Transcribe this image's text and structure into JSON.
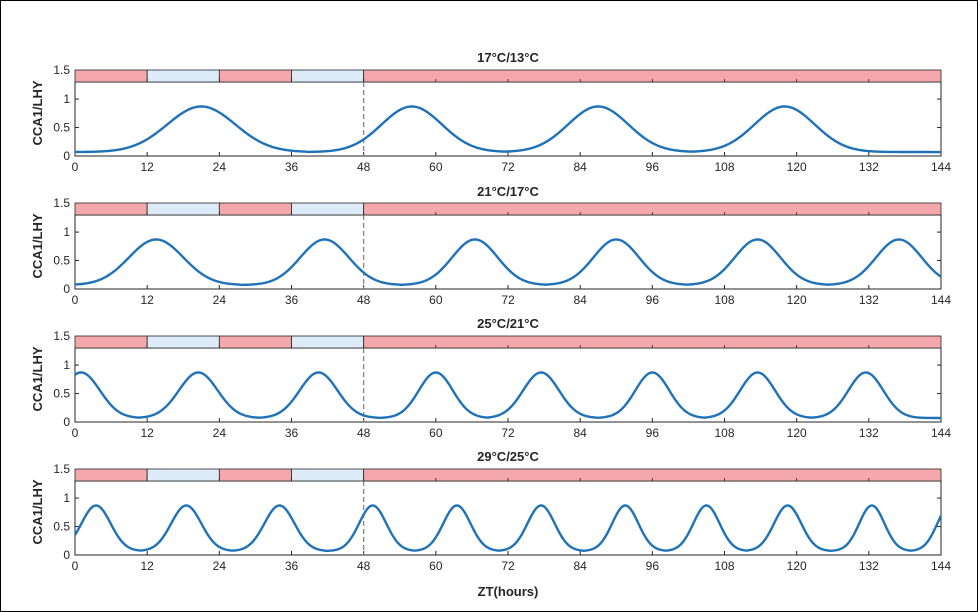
{
  "chart_data": [
    {
      "type": "line",
      "title": "17°C/13°C",
      "ylabel": "CCA1/LHY",
      "xlabel": "",
      "xlim": [
        0,
        144
      ],
      "ylim": [
        0,
        1.3
      ],
      "xticks": [
        0,
        12,
        24,
        36,
        48,
        60,
        72,
        84,
        96,
        108,
        120,
        132,
        144
      ],
      "yticks": [
        0,
        0.5,
        1
      ],
      "ytick_labels": [
        "0",
        "0.5",
        "1",
        "1.5"
      ],
      "bar_top_value": 1.5,
      "light_dark_bar": [
        {
          "start": 0,
          "end": 12,
          "state": "light"
        },
        {
          "start": 12,
          "end": 24,
          "state": "dark"
        },
        {
          "start": 24,
          "end": 36,
          "state": "light"
        },
        {
          "start": 36,
          "end": 48,
          "state": "dark"
        },
        {
          "start": 48,
          "end": 144,
          "state": "light"
        }
      ],
      "divider_x": 48,
      "series": [
        {
          "color": "#1f72b8",
          "min": 0.07,
          "max": 0.87,
          "peaks": [
            21,
            56,
            87,
            118
          ]
        }
      ]
    },
    {
      "type": "line",
      "title": "21°C/17°C",
      "ylabel": "CCA1/LHY",
      "xlabel": "",
      "xlim": [
        0,
        144
      ],
      "ylim": [
        0,
        1.3
      ],
      "xticks": [
        0,
        12,
        24,
        36,
        48,
        60,
        72,
        84,
        96,
        108,
        120,
        132,
        144
      ],
      "yticks": [
        0,
        0.5,
        1
      ],
      "ytick_labels": [
        "0",
        "0.5",
        "1",
        "1.5"
      ],
      "bar_top_value": 1.5,
      "light_dark_bar": [
        {
          "start": 0,
          "end": 12,
          "state": "light"
        },
        {
          "start": 12,
          "end": 24,
          "state": "dark"
        },
        {
          "start": 24,
          "end": 36,
          "state": "light"
        },
        {
          "start": 36,
          "end": 48,
          "state": "dark"
        },
        {
          "start": 48,
          "end": 144,
          "state": "light"
        }
      ],
      "divider_x": 48,
      "series": [
        {
          "color": "#1f72b8",
          "min": 0.07,
          "max": 0.87,
          "peaks": [
            13.5,
            41.5,
            66.5,
            90,
            113.5,
            137
          ]
        }
      ]
    },
    {
      "type": "line",
      "title": "25°C/21°C",
      "ylabel": "CCA1/LHY",
      "xlabel": "",
      "xlim": [
        0,
        144
      ],
      "ylim": [
        0,
        1.3
      ],
      "xticks": [
        0,
        12,
        24,
        36,
        48,
        60,
        72,
        84,
        96,
        108,
        120,
        132,
        144
      ],
      "yticks": [
        0,
        0.5,
        1
      ],
      "ytick_labels": [
        "0",
        "0.5",
        "1",
        "1.5"
      ],
      "bar_top_value": 1.5,
      "light_dark_bar": [
        {
          "start": 0,
          "end": 12,
          "state": "light"
        },
        {
          "start": 12,
          "end": 24,
          "state": "dark"
        },
        {
          "start": 24,
          "end": 36,
          "state": "light"
        },
        {
          "start": 36,
          "end": 48,
          "state": "dark"
        },
        {
          "start": 48,
          "end": 144,
          "state": "light"
        }
      ],
      "divider_x": 48,
      "series": [
        {
          "color": "#1f72b8",
          "min": 0.07,
          "max": 0.87,
          "peaks": [
            1,
            20.5,
            40.5,
            60,
            77.5,
            96,
            113.5,
            131.5
          ]
        }
      ]
    },
    {
      "type": "line",
      "title": "29°C/25°C",
      "ylabel": "CCA1/LHY",
      "xlabel": "ZT(hours)",
      "xlim": [
        0,
        144
      ],
      "ylim": [
        0,
        1.3
      ],
      "xticks": [
        0,
        12,
        24,
        36,
        48,
        60,
        72,
        84,
        96,
        108,
        120,
        132,
        144
      ],
      "yticks": [
        0,
        0.5,
        1
      ],
      "ytick_labels": [
        "0",
        "0.5",
        "1",
        "1.5"
      ],
      "bar_top_value": 1.5,
      "light_dark_bar": [
        {
          "start": 0,
          "end": 12,
          "state": "light"
        },
        {
          "start": 12,
          "end": 24,
          "state": "dark"
        },
        {
          "start": 24,
          "end": 36,
          "state": "light"
        },
        {
          "start": 36,
          "end": 48,
          "state": "dark"
        },
        {
          "start": 48,
          "end": 144,
          "state": "light"
        }
      ],
      "divider_x": 48,
      "series": [
        {
          "color": "#1f72b8",
          "min": 0.07,
          "max": 0.87,
          "peaks": [
            3.5,
            18.5,
            34,
            49.5,
            63.5,
            77.5,
            91.5,
            105,
            118.5,
            132.5,
            145.5
          ]
        }
      ]
    }
  ],
  "colors": {
    "light": "#f4a8ac",
    "dark": "#dcebf7",
    "line": "#1f72b8"
  }
}
